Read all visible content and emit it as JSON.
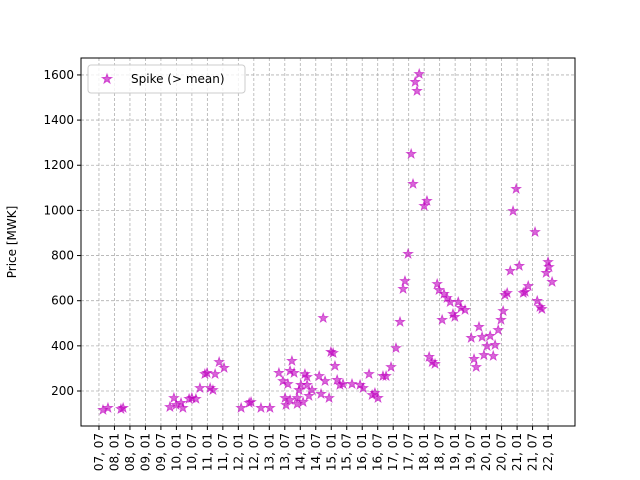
{
  "chart_data": {
    "type": "scatter",
    "ylabel": "Price [MWK]",
    "series": [
      {
        "name": "Spike (> mean)",
        "color": "#bf00bf",
        "x": [
          2007.63,
          2007.79,
          2008.21,
          2008.28,
          2009.79,
          2009.92,
          2009.99,
          2010.15,
          2010.21,
          2010.41,
          2010.5,
          2010.63,
          2010.76,
          2010.92,
          2010.99,
          2011.09,
          2011.18,
          2011.25,
          2011.38,
          2011.54,
          2012.09,
          2012.35,
          2012.41,
          2012.73,
          2013.02,
          2013.31,
          2013.44,
          2013.51,
          2013.6,
          2013.67,
          2013.73,
          2013.8,
          2013.9,
          2013.96,
          2014.02,
          2014.09,
          2014.15,
          2014.22,
          2014.28,
          2014.38,
          2013.9,
          2013.54,
          2013.67,
          2014.22,
          2014.61,
          2014.67,
          2014.74,
          2014.8,
          2014.93,
          2014.99,
          2015.06,
          2015.12,
          2015.19,
          2015.28,
          2015.38,
          2015.67,
          2015.93,
          2016.03,
          2016.22,
          2016.32,
          2016.41,
          2016.51,
          2016.67,
          2016.77,
          2016.93,
          2017.09,
          2017.22,
          2017.32,
          2017.38,
          2017.48,
          2017.58,
          2017.64,
          2017.71,
          2017.77,
          2017.84,
          2018.0,
          2018.09,
          2018.16,
          2018.26,
          2018.35,
          2018.42,
          2018.48,
          2018.58,
          2018.64,
          2018.74,
          2018.84,
          2018.93,
          2018.99,
          2019.1,
          2019.19,
          2019.32,
          2019.52,
          2019.61,
          2019.68,
          2019.77,
          2019.87,
          2019.93,
          2020.03,
          2020.13,
          2020.23,
          2020.29,
          2020.39,
          2020.48,
          2020.55,
          2020.61,
          2020.68,
          2020.78,
          2020.87,
          2020.97,
          2021.07,
          2021.2,
          2021.26,
          2021.36,
          2021.58,
          2021.65,
          2021.74,
          2021.8,
          2021.94,
          2022.0,
          2022.03,
          2022.13
        ],
        "values": [
          116,
          125,
          120,
          125,
          129,
          169,
          138,
          147,
          125,
          165,
          169,
          165,
          213,
          275,
          280,
          213,
          204,
          275,
          328,
          302,
          125,
          147,
          151,
          125,
          125,
          280,
          244,
          169,
          231,
          289,
          333,
          280,
          169,
          204,
          227,
          151,
          275,
          227,
          178,
          204,
          142,
          138,
          160,
          262,
          266,
          187,
          523,
          244,
          169,
          373,
          368,
          311,
          249,
          227,
          231,
          231,
          227,
          213,
          275,
          182,
          191,
          169,
          266,
          266,
          306,
          390,
          506,
          652,
          687,
          807,
          1250,
          1117,
          1569,
          1529,
          1604,
          1020,
          1042,
          351,
          328,
          320,
          674,
          647,
          515,
          630,
          612,
          594,
          541,
          528,
          594,
          568,
          559,
          435,
          342,
          306,
          484,
          439,
          359,
          399,
          444,
          355,
          404,
          470,
          515,
          554,
          625,
          634,
          732,
          997,
          1095,
          754,
          634,
          639,
          665,
          904,
          599,
          572,
          563,
          723,
          771,
          749,
          683
        ]
      }
    ],
    "xlim": [
      2006.92,
      2022.87
    ],
    "ylim": [
      45,
      1675
    ],
    "yticks": [
      200,
      400,
      600,
      800,
      1000,
      1200,
      1400,
      1600
    ],
    "xticks": [
      {
        "value": 2007.5,
        "label": "07, 07"
      },
      {
        "value": 2008.0,
        "label": "08, 01"
      },
      {
        "value": 2008.5,
        "label": "08, 07"
      },
      {
        "value": 2009.0,
        "label": "09, 01"
      },
      {
        "value": 2009.5,
        "label": "09, 07"
      },
      {
        "value": 2010.0,
        "label": "10, 01"
      },
      {
        "value": 2010.5,
        "label": "10, 07"
      },
      {
        "value": 2011.0,
        "label": "11, 01"
      },
      {
        "value": 2011.5,
        "label": "11, 07"
      },
      {
        "value": 2012.0,
        "label": "12, 01"
      },
      {
        "value": 2012.5,
        "label": "12, 07"
      },
      {
        "value": 2013.0,
        "label": "13, 01"
      },
      {
        "value": 2013.5,
        "label": "13, 07"
      },
      {
        "value": 2014.0,
        "label": "14, 01"
      },
      {
        "value": 2014.5,
        "label": "14, 07"
      },
      {
        "value": 2015.0,
        "label": "15, 01"
      },
      {
        "value": 2015.5,
        "label": "15, 07"
      },
      {
        "value": 2016.0,
        "label": "16, 01"
      },
      {
        "value": 2016.5,
        "label": "16, 07"
      },
      {
        "value": 2017.0,
        "label": "17, 01"
      },
      {
        "value": 2017.5,
        "label": "17, 07"
      },
      {
        "value": 2018.0,
        "label": "18, 01"
      },
      {
        "value": 2018.5,
        "label": "18, 07"
      },
      {
        "value": 2019.0,
        "label": "19, 01"
      },
      {
        "value": 2019.5,
        "label": "19, 07"
      },
      {
        "value": 2020.0,
        "label": "20, 01"
      },
      {
        "value": 2020.5,
        "label": "20, 07"
      },
      {
        "value": 2021.0,
        "label": "21, 01"
      },
      {
        "value": 2021.5,
        "label": "21, 07"
      },
      {
        "value": 2022.0,
        "label": "22, 01"
      }
    ],
    "grid": true,
    "legend": "upper left"
  }
}
